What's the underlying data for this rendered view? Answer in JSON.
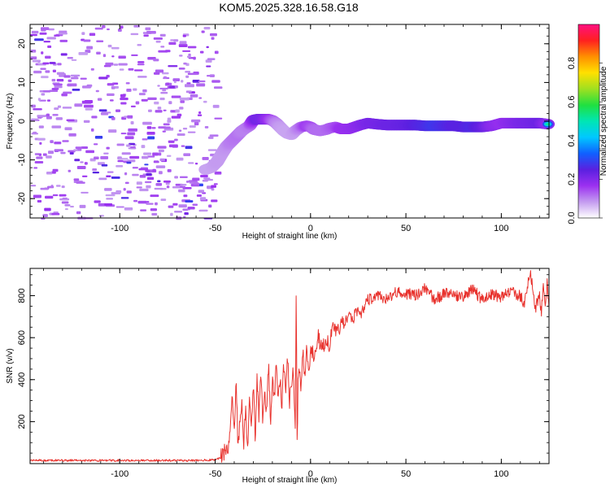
{
  "figure": {
    "title": "KOM5.2025.328.16.58.G18"
  },
  "chart_data": [
    {
      "type": "heatmap",
      "title": "",
      "xlabel": "Height of straight line (km)",
      "ylabel": "Frequency (Hz)",
      "xlim": [
        -147,
        125
      ],
      "ylim": [
        -25,
        25
      ],
      "xticks": [
        -100,
        -50,
        0,
        50,
        100
      ],
      "yticks": [
        -20,
        -10,
        0,
        10,
        20
      ],
      "colorbar": {
        "label": "Normalized spectral amplitude",
        "range": [
          0,
          1
        ],
        "ticks": [
          0.0,
          0.2,
          0.4,
          0.6,
          0.8
        ],
        "tick_labels": [
          "0.0",
          "0.2",
          "0.4",
          "0.6",
          "0.8"
        ],
        "colors": [
          "#ffffff",
          "#c49cf0",
          "#9b30f0",
          "#5a20e0",
          "#1060ff",
          "#00c8ff",
          "#00e6b4",
          "#20e040",
          "#a0e020",
          "#ffe000",
          "#ff9000",
          "#ff2020",
          "#ff1080"
        ]
      },
      "noise_region_km": [
        -147,
        -50
      ],
      "signal_track": {
        "x": [
          -55,
          -52,
          -49,
          -46,
          -44,
          -42,
          -40,
          -38,
          -36,
          -34,
          -32,
          -30,
          -28,
          -25,
          -22,
          -20,
          -18,
          -16,
          -14,
          -12,
          -10,
          -8,
          -5,
          -2,
          0,
          2,
          5,
          8,
          10,
          13,
          16,
          20,
          23,
          26,
          30,
          35,
          40,
          45,
          50,
          55,
          60,
          65,
          70,
          75,
          80,
          85,
          90,
          95,
          100,
          105,
          110,
          115,
          120,
          125
        ],
        "frequency_hz": [
          -12.5,
          -12,
          -10.5,
          -8,
          -6.5,
          -5.5,
          -4.5,
          -3.5,
          -2.5,
          -1.8,
          -1.2,
          0.3,
          0.5,
          0.5,
          0.5,
          0.2,
          -0.5,
          -1.5,
          -2.5,
          -3.2,
          -3.5,
          -2.5,
          -1.5,
          -1.2,
          -1.5,
          -2.2,
          -2.5,
          -2.2,
          -1.8,
          -1.5,
          -2,
          -2,
          -1.5,
          -1,
          -0.5,
          -0.8,
          -1,
          -1,
          -1,
          -1,
          -1.2,
          -1.2,
          -1.2,
          -1.2,
          -1.5,
          -1.5,
          -1.5,
          -1.2,
          -0.5,
          -0.5,
          -0.5,
          -0.5,
          -0.5,
          -0.8
        ],
        "amplitude": [
          0.22,
          0.22,
          0.24,
          0.24,
          0.26,
          0.3,
          0.32,
          0.33,
          0.3,
          0.3,
          0.32,
          0.5,
          0.62,
          0.6,
          0.5,
          0.4,
          0.3,
          0.24,
          0.22,
          0.22,
          0.22,
          0.24,
          0.32,
          0.45,
          0.42,
          0.35,
          0.34,
          0.34,
          0.36,
          0.4,
          0.48,
          0.5,
          0.52,
          0.55,
          0.6,
          0.62,
          0.65,
          0.66,
          0.68,
          0.72,
          0.75,
          0.8,
          0.76,
          0.72,
          0.72,
          0.75,
          0.68,
          0.55,
          0.5,
          0.55,
          0.6,
          0.62,
          0.65,
          0.5
        ]
      }
    },
    {
      "type": "line",
      "title": "",
      "xlabel": "Height of straight line (km)",
      "ylabel": "SNR (v/v)",
      "xlim": [
        -147,
        125
      ],
      "ylim": [
        0,
        930
      ],
      "xticks": [
        -100,
        -50,
        0,
        50,
        100
      ],
      "yticks": [
        200,
        400,
        600,
        800
      ],
      "series": [
        {
          "name": "SNR",
          "color": "#e8322d",
          "x": [
            -147,
            -120,
            -90,
            -60,
            -50,
            -47,
            -45,
            -43,
            -42,
            -41,
            -40,
            -39,
            -38,
            -37,
            -36,
            -35,
            -34,
            -33,
            -32,
            -31,
            -30,
            -29,
            -28,
            -27,
            -26,
            -25,
            -24,
            -23,
            -22,
            -21,
            -20,
            -19,
            -18,
            -17,
            -16,
            -15,
            -14,
            -13,
            -12,
            -11,
            -10,
            -9,
            -8,
            -7.5,
            -7,
            -6.5,
            -6,
            -5,
            -4,
            -3,
            -2,
            -1,
            0,
            2,
            4,
            6,
            8,
            10,
            12,
            14,
            16,
            18,
            20,
            22,
            24,
            26,
            28,
            30,
            33,
            36,
            40,
            45,
            50,
            55,
            60,
            65,
            70,
            75,
            80,
            85,
            90,
            95,
            100,
            105,
            110,
            112,
            115,
            118,
            120,
            121,
            122,
            123,
            124,
            125
          ],
          "values": [
            15,
            15,
            15,
            15,
            18,
            30,
            60,
            80,
            180,
            320,
            140,
            430,
            60,
            200,
            310,
            100,
            290,
            50,
            350,
            170,
            390,
            110,
            420,
            220,
            460,
            180,
            350,
            250,
            480,
            200,
            390,
            300,
            460,
            310,
            420,
            260,
            480,
            360,
            510,
            300,
            400,
            430,
            120,
            840,
            50,
            420,
            450,
            380,
            520,
            420,
            560,
            430,
            540,
            520,
            620,
            530,
            600,
            570,
            650,
            610,
            680,
            650,
            720,
            680,
            730,
            700,
            750,
            780,
            790,
            800,
            780,
            820,
            810,
            800,
            840,
            780,
            810,
            800,
            790,
            830,
            780,
            810,
            790,
            820,
            800,
            760,
            920,
            740,
            810,
            700,
            880,
            760,
            860,
            740
          ]
        }
      ]
    }
  ]
}
